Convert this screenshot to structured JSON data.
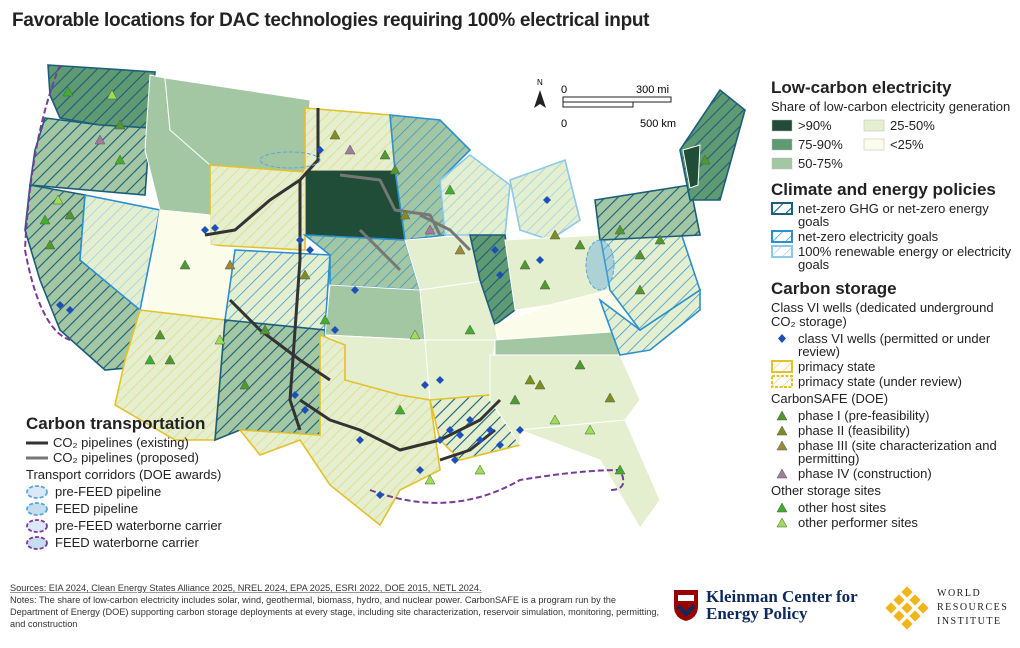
{
  "header": {
    "title": "Favorable locations for DAC technologies requiring 100% electrical input"
  },
  "scale": {
    "north": "N",
    "zero_miles": "0",
    "miles": "300 mi",
    "zero_km": "0",
    "km": "500 km"
  },
  "electricity": {
    "title": "Low-carbon electricity",
    "subtitle": "Share of low-carbon electricity generation",
    "items": [
      {
        "label": ">90%",
        "color": "#1f4d37"
      },
      {
        "label": "25-50%",
        "color": "#e3efcf"
      },
      {
        "label": "75-90%",
        "color": "#5f9a73"
      },
      {
        "label": "<25%",
        "color": "#fbfce9"
      },
      {
        "label": "50-75%",
        "color": "#a3c7a2"
      }
    ]
  },
  "policies": {
    "title": "Climate and energy policies",
    "items": [
      {
        "label": "net-zero GHG or net-zero energy goals",
        "color": "#1b5e7a"
      },
      {
        "label": "net-zero electricity goals",
        "color": "#2b8fd0"
      },
      {
        "label": "100% renewable energy or electricity goals",
        "color": "#8cc8ea"
      }
    ]
  },
  "storage": {
    "title": "Carbon storage",
    "subtitle": "Class VI wells (dedicated underground CO₂ storage)",
    "wells": [
      {
        "label": "class VI wells (permitted or under review)",
        "color": "#1d4fb8"
      },
      {
        "label": "primacy state",
        "color": "#e3c12a"
      },
      {
        "label": "primacy state (under review)",
        "color": "#e3c12a"
      }
    ],
    "carbonsafe_title": "CarbonSAFE (DOE)",
    "carbonsafe": [
      {
        "label": "phase I (pre-feasibility)",
        "color": "#4f9a2c"
      },
      {
        "label": "phase II (feasibility)",
        "color": "#7f8f1f"
      },
      {
        "label": "phase III (site characterization and permitting)",
        "color": "#9c8a3a"
      },
      {
        "label": "phase IV (construction)",
        "color": "#a27ca0"
      }
    ],
    "other_title": "Other storage sites",
    "other": [
      {
        "label": "other host sites",
        "color": "#3fb02a"
      },
      {
        "label": "other performer sites",
        "color": "#9be04f"
      }
    ]
  },
  "transport": {
    "title": "Carbon transportation",
    "pipelines": [
      {
        "label": "CO₂ pipelines (existing)",
        "color": "#333333"
      },
      {
        "label": "CO₂ pipelines (proposed)",
        "color": "#777777"
      }
    ],
    "corridors_title": "Transport corridors (DOE awards)",
    "corridors": [
      {
        "label": "pre-FEED pipeline",
        "color": "#5aa7e0"
      },
      {
        "label": "FEED pipeline",
        "color": "#5aa7e0"
      },
      {
        "label": "pre-FEED waterborne carrier",
        "color": "#7a3a9a"
      },
      {
        "label": "FEED waterborne carrier",
        "color": "#7a3a9a"
      }
    ]
  },
  "footer": {
    "sources": "Sources: EIA 2024, Clean Energy States Alliance 2025, NREL 2024, EPA 2025, ESRI 2022, DOE 2015, NETL 2024.",
    "notes": "Notes: The share of low-carbon electricity includes solar, wind, geothermal, biomass, hydro, and nuclear power. CarbonSAFE is a program run by the Department of Energy (DOE) supporting carbon storage deployments at every stage, including site characterization, reservoir simulation, monitoring, permitting, and construction"
  },
  "logos": {
    "kleinman": "Kleinman Center for Energy Policy",
    "wri": "WORLD RESOURCES INSTITUTE"
  }
}
